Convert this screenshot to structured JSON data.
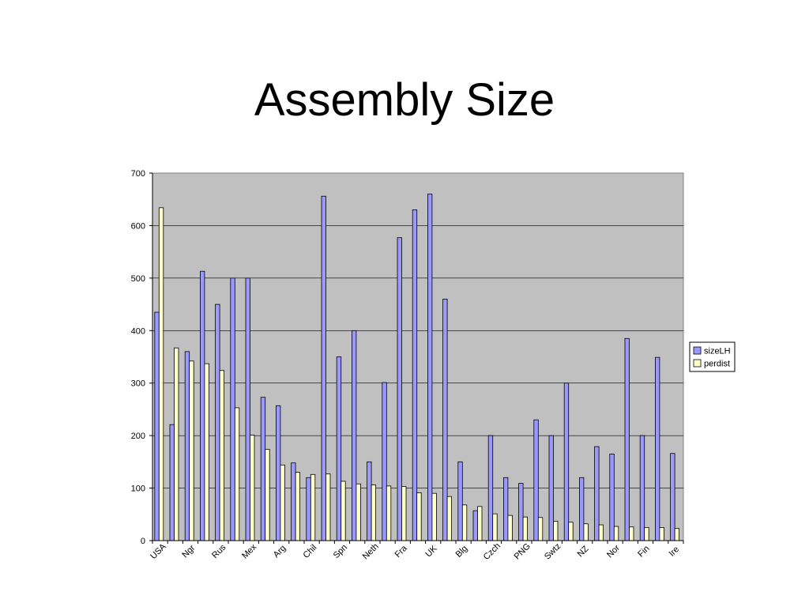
{
  "slide": {
    "title": "Assembly Size"
  },
  "chart_data": {
    "type": "bar",
    "title": "",
    "xlabel": "",
    "ylabel": "",
    "ylim": [
      0,
      700
    ],
    "yticks": [
      0,
      100,
      200,
      300,
      400,
      500,
      600,
      700
    ],
    "grid": true,
    "legend_position": "right",
    "plot_background": "#c0c0c0",
    "x_tick_labels": [
      "USA",
      "Ngr",
      "Rus",
      "Mex",
      "Arg",
      "Chil",
      "Spn",
      "Neth",
      "Fra",
      "UK",
      "Blg",
      "Czch",
      "PNG",
      "Swtz",
      "NZ",
      "Nor",
      "Fin",
      "Ire"
    ],
    "series": [
      {
        "name": "sizeLH",
        "color": "#9999ff",
        "values": [
          435,
          221,
          360,
          513,
          450,
          500,
          500,
          273,
          257,
          148,
          120,
          656,
          350,
          400,
          150,
          301,
          577,
          630,
          660,
          460,
          150,
          57,
          200,
          120,
          109,
          230,
          200,
          300,
          120,
          179,
          165,
          385,
          200,
          349,
          166
        ]
      },
      {
        "name": "perdist",
        "color": "#ffffcc",
        "values": [
          634,
          367,
          342,
          337,
          324,
          253,
          201,
          174,
          144,
          130,
          126,
          127,
          113,
          108,
          106,
          104,
          103,
          91,
          90,
          84,
          68,
          65,
          51,
          48,
          45,
          44,
          37,
          35,
          32,
          30,
          27,
          26,
          25,
          25,
          23
        ]
      }
    ]
  }
}
